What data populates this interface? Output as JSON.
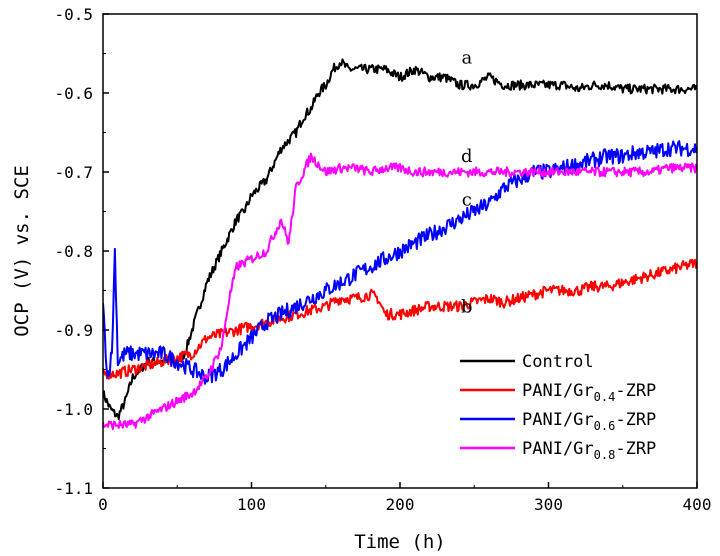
{
  "chart_data": {
    "type": "line",
    "title": "",
    "xlabel": "Time (h)",
    "ylabel": "OCP (V) vs. SCE",
    "xlim": [
      0,
      400
    ],
    "ylim": [
      -1.1,
      -0.5
    ],
    "xticks": [
      0,
      100,
      200,
      300,
      400
    ],
    "xtick_labels": [
      "0",
      "100",
      "200",
      "300",
      "400"
    ],
    "yticks": [
      -0.5,
      -0.6,
      -0.7,
      -0.8,
      -0.9,
      -1.0,
      -1.1
    ],
    "ytick_labels": [
      "-0.5",
      "-0.6",
      "-0.7",
      "-0.8",
      "-0.9",
      "-1.0",
      "-1.1"
    ],
    "grid": false,
    "legend_position": "bottom-right",
    "series": [
      {
        "name": "Control",
        "legend_main": "Control",
        "legend_sub": "",
        "legend_suffix": "",
        "label": "a",
        "color": "#000000",
        "points": [
          [
            0,
            -0.98
          ],
          [
            5,
            -1.0
          ],
          [
            10,
            -1.01
          ],
          [
            15,
            -0.99
          ],
          [
            20,
            -0.96
          ],
          [
            30,
            -0.94
          ],
          [
            40,
            -0.94
          ],
          [
            50,
            -0.94
          ],
          [
            55,
            -0.93
          ],
          [
            60,
            -0.9
          ],
          [
            65,
            -0.87
          ],
          [
            70,
            -0.84
          ],
          [
            75,
            -0.82
          ],
          [
            80,
            -0.8
          ],
          [
            85,
            -0.78
          ],
          [
            90,
            -0.76
          ],
          [
            95,
            -0.75
          ],
          [
            100,
            -0.73
          ],
          [
            105,
            -0.72
          ],
          [
            110,
            -0.71
          ],
          [
            115,
            -0.69
          ],
          [
            120,
            -0.67
          ],
          [
            125,
            -0.66
          ],
          [
            130,
            -0.65
          ],
          [
            135,
            -0.63
          ],
          [
            140,
            -0.62
          ],
          [
            145,
            -0.6
          ],
          [
            150,
            -0.59
          ],
          [
            155,
            -0.57
          ],
          [
            160,
            -0.56
          ],
          [
            165,
            -0.57
          ],
          [
            170,
            -0.57
          ],
          [
            180,
            -0.57
          ],
          [
            190,
            -0.57
          ],
          [
            200,
            -0.58
          ],
          [
            210,
            -0.57
          ],
          [
            220,
            -0.58
          ],
          [
            230,
            -0.58
          ],
          [
            240,
            -0.59
          ],
          [
            250,
            -0.59
          ],
          [
            260,
            -0.58
          ],
          [
            270,
            -0.59
          ],
          [
            280,
            -0.59
          ],
          [
            290,
            -0.59
          ],
          [
            300,
            -0.59
          ],
          [
            310,
            -0.59
          ],
          [
            320,
            -0.595
          ],
          [
            330,
            -0.59
          ],
          [
            340,
            -0.59
          ],
          [
            350,
            -0.595
          ],
          [
            360,
            -0.595
          ],
          [
            370,
            -0.595
          ],
          [
            380,
            -0.595
          ],
          [
            390,
            -0.595
          ],
          [
            400,
            -0.595
          ]
        ]
      },
      {
        "name": "PANI/Gr0.4-ZRP",
        "legend_main": "PANI/Gr",
        "legend_sub": "0.4",
        "legend_suffix": "-ZRP",
        "label": "b",
        "color": "#ff0000",
        "points": [
          [
            0,
            -0.955
          ],
          [
            10,
            -0.955
          ],
          [
            20,
            -0.95
          ],
          [
            30,
            -0.945
          ],
          [
            40,
            -0.94
          ],
          [
            50,
            -0.935
          ],
          [
            60,
            -0.93
          ],
          [
            70,
            -0.91
          ],
          [
            80,
            -0.905
          ],
          [
            90,
            -0.9
          ],
          [
            100,
            -0.895
          ],
          [
            110,
            -0.89
          ],
          [
            120,
            -0.885
          ],
          [
            130,
            -0.88
          ],
          [
            140,
            -0.875
          ],
          [
            150,
            -0.87
          ],
          [
            160,
            -0.86
          ],
          [
            170,
            -0.86
          ],
          [
            180,
            -0.855
          ],
          [
            185,
            -0.86
          ],
          [
            190,
            -0.88
          ],
          [
            200,
            -0.88
          ],
          [
            210,
            -0.875
          ],
          [
            220,
            -0.87
          ],
          [
            230,
            -0.87
          ],
          [
            240,
            -0.87
          ],
          [
            250,
            -0.865
          ],
          [
            260,
            -0.86
          ],
          [
            270,
            -0.865
          ],
          [
            280,
            -0.86
          ],
          [
            290,
            -0.855
          ],
          [
            300,
            -0.85
          ],
          [
            310,
            -0.85
          ],
          [
            320,
            -0.85
          ],
          [
            330,
            -0.845
          ],
          [
            340,
            -0.845
          ],
          [
            350,
            -0.84
          ],
          [
            360,
            -0.835
          ],
          [
            370,
            -0.83
          ],
          [
            380,
            -0.825
          ],
          [
            390,
            -0.82
          ],
          [
            400,
            -0.815
          ]
        ]
      },
      {
        "name": "PANI/Gr0.6-ZRP",
        "legend_main": "PANI/Gr",
        "legend_sub": "0.6",
        "legend_suffix": "-ZRP",
        "label": "c",
        "color": "#0000ff",
        "points": [
          [
            0,
            -0.87
          ],
          [
            3,
            -0.96
          ],
          [
            6,
            -0.93
          ],
          [
            8,
            -0.8
          ],
          [
            10,
            -0.94
          ],
          [
            15,
            -0.93
          ],
          [
            20,
            -0.93
          ],
          [
            30,
            -0.93
          ],
          [
            40,
            -0.93
          ],
          [
            50,
            -0.94
          ],
          [
            60,
            -0.95
          ],
          [
            70,
            -0.96
          ],
          [
            80,
            -0.95
          ],
          [
            90,
            -0.93
          ],
          [
            100,
            -0.91
          ],
          [
            110,
            -0.89
          ],
          [
            120,
            -0.88
          ],
          [
            130,
            -0.87
          ],
          [
            140,
            -0.86
          ],
          [
            150,
            -0.85
          ],
          [
            160,
            -0.84
          ],
          [
            170,
            -0.83
          ],
          [
            180,
            -0.82
          ],
          [
            190,
            -0.81
          ],
          [
            200,
            -0.8
          ],
          [
            210,
            -0.79
          ],
          [
            220,
            -0.78
          ],
          [
            230,
            -0.77
          ],
          [
            240,
            -0.76
          ],
          [
            250,
            -0.75
          ],
          [
            260,
            -0.74
          ],
          [
            270,
            -0.72
          ],
          [
            280,
            -0.71
          ],
          [
            290,
            -0.7
          ],
          [
            300,
            -0.7
          ],
          [
            310,
            -0.695
          ],
          [
            320,
            -0.69
          ],
          [
            330,
            -0.685
          ],
          [
            340,
            -0.68
          ],
          [
            350,
            -0.68
          ],
          [
            360,
            -0.675
          ],
          [
            370,
            -0.675
          ],
          [
            380,
            -0.67
          ],
          [
            390,
            -0.67
          ],
          [
            400,
            -0.67
          ]
        ]
      },
      {
        "name": "PANI/Gr0.8-ZRP",
        "legend_main": "PANI/Gr",
        "legend_sub": "0.8",
        "legend_suffix": "-ZRP",
        "label": "d",
        "color": "#ff00ff",
        "points": [
          [
            0,
            -1.02
          ],
          [
            10,
            -1.02
          ],
          [
            20,
            -1.02
          ],
          [
            30,
            -1.01
          ],
          [
            40,
            -1.0
          ],
          [
            50,
            -0.99
          ],
          [
            60,
            -0.98
          ],
          [
            70,
            -0.96
          ],
          [
            80,
            -0.92
          ],
          [
            85,
            -0.86
          ],
          [
            90,
            -0.82
          ],
          [
            100,
            -0.81
          ],
          [
            110,
            -0.8
          ],
          [
            120,
            -0.76
          ],
          [
            125,
            -0.79
          ],
          [
            130,
            -0.72
          ],
          [
            135,
            -0.7
          ],
          [
            140,
            -0.68
          ],
          [
            145,
            -0.69
          ],
          [
            150,
            -0.7
          ],
          [
            160,
            -0.695
          ],
          [
            170,
            -0.695
          ],
          [
            180,
            -0.7
          ],
          [
            190,
            -0.695
          ],
          [
            200,
            -0.695
          ],
          [
            210,
            -0.7
          ],
          [
            220,
            -0.7
          ],
          [
            230,
            -0.7
          ],
          [
            240,
            -0.7
          ],
          [
            250,
            -0.7
          ],
          [
            260,
            -0.7
          ],
          [
            270,
            -0.7
          ],
          [
            280,
            -0.7
          ],
          [
            290,
            -0.7
          ],
          [
            300,
            -0.7
          ],
          [
            310,
            -0.7
          ],
          [
            320,
            -0.7
          ],
          [
            330,
            -0.7
          ],
          [
            340,
            -0.7
          ],
          [
            350,
            -0.7
          ],
          [
            360,
            -0.7
          ],
          [
            370,
            -0.7
          ],
          [
            380,
            -0.695
          ],
          [
            390,
            -0.695
          ],
          [
            400,
            -0.695
          ]
        ]
      }
    ],
    "curve_label_positions": [
      {
        "label": "a",
        "x": 245,
        "y": -0.555
      },
      {
        "label": "d",
        "x": 245,
        "y": -0.68
      },
      {
        "label": "c",
        "x": 245,
        "y": -0.735
      },
      {
        "label": "b",
        "x": 245,
        "y": -0.87
      }
    ]
  }
}
